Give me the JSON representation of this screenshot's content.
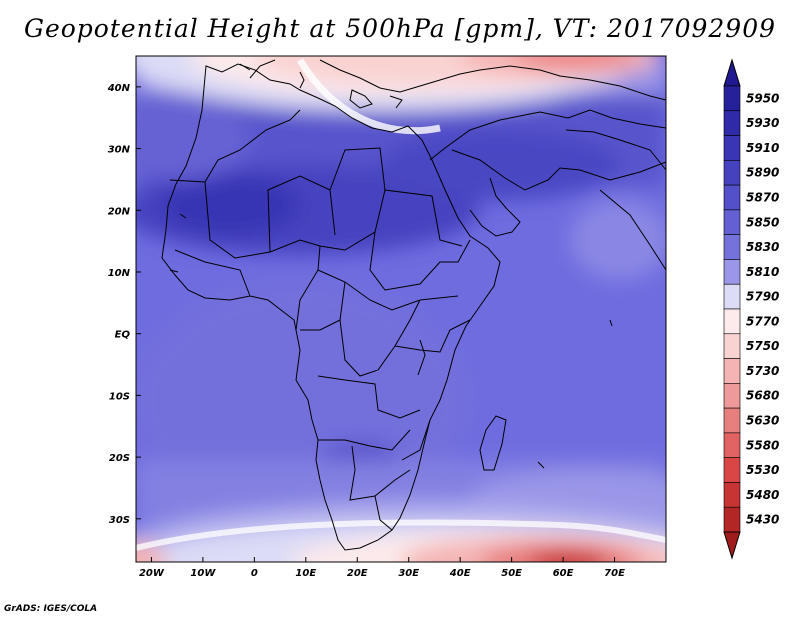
{
  "title": "Geopotential Height at 500hPa [gpm], VT: 2017092909",
  "credit": "GrADS: IGES/COLA",
  "map": {
    "lon_range": [
      -23,
      80
    ],
    "lat_range": [
      -37,
      45
    ],
    "x_ticks": [
      {
        "value": -20,
        "label": "20W"
      },
      {
        "value": -10,
        "label": "10W"
      },
      {
        "value": 0,
        "label": "0"
      },
      {
        "value": 10,
        "label": "10E"
      },
      {
        "value": 20,
        "label": "20E"
      },
      {
        "value": 30,
        "label": "30E"
      },
      {
        "value": 40,
        "label": "40E"
      },
      {
        "value": 50,
        "label": "50E"
      },
      {
        "value": 60,
        "label": "60E"
      },
      {
        "value": 70,
        "label": "70E"
      }
    ],
    "y_ticks": [
      {
        "value": 40,
        "label": "40N"
      },
      {
        "value": 30,
        "label": "30N"
      },
      {
        "value": 20,
        "label": "20N"
      },
      {
        "value": 10,
        "label": "10N"
      },
      {
        "value": 0,
        "label": "EQ"
      },
      {
        "value": -10,
        "label": "10S"
      },
      {
        "value": -20,
        "label": "20S"
      },
      {
        "value": -30,
        "label": "30S"
      }
    ]
  },
  "colorbar": {
    "levels": [
      {
        "label": "5950",
        "color": "#26209a"
      },
      {
        "label": "5930",
        "color": "#2f2aa8"
      },
      {
        "label": "5910",
        "color": "#3935b4"
      },
      {
        "label": "5890",
        "color": "#4642bf"
      },
      {
        "label": "5870",
        "color": "#5450c9"
      },
      {
        "label": "5850",
        "color": "#645fd2"
      },
      {
        "label": "5830",
        "color": "#7572db"
      },
      {
        "label": "5810",
        "color": "#9a96e8"
      },
      {
        "label": "5790",
        "color": "#dcdcf6"
      },
      {
        "label": "5770",
        "color": "#fdeaea"
      },
      {
        "label": "5750",
        "color": "#f9d2d2"
      },
      {
        "label": "5730",
        "color": "#f4b4b4"
      },
      {
        "label": "5680",
        "color": "#ee9a9a"
      },
      {
        "label": "5630",
        "color": "#e87f7f"
      },
      {
        "label": "5580",
        "color": "#e26363"
      },
      {
        "label": "5530",
        "color": "#da4646"
      },
      {
        "label": "5480",
        "color": "#c83434"
      },
      {
        "label": "5430",
        "color": "#b22626"
      }
    ],
    "top_color": "#1f1890",
    "bottom_color": "#a01c1c"
  }
}
